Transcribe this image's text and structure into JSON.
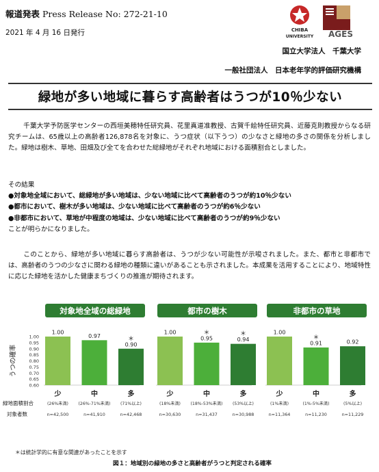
{
  "header": {
    "press_label": "報道発表",
    "press_release": "Press Release No: 272-21-10",
    "date": "2021 年 4 月 16 日発行",
    "org1": "国立大学法人　千葉大学",
    "org2": "一般社団法人　日本老年学的評価研究機構",
    "logo_chiba_text": "CHIBA UNIVERSITY",
    "logo_ages_text": "AGES"
  },
  "title": "緑地が多い地域に暮らす高齢者はうつが10％少ない",
  "para1": "千葉大学予防医学センターの西垣美穂特任研究員、花里真道准教授、古賀千絵特任研究員、近藤克則教授からなる研究チームは、65歳以上の高齢者126,878名を対象に、うつ症状（以下うつ）の少なさと緑地の多さの関係を分析しました。緑地は樹木、草地、田畑及び全てを合わせた総緑地がそれぞれ地域における面積割合としました。",
  "results": {
    "intro": "その結果",
    "bullets": [
      "●対象地全域において、総緑地が多い地域は、少ない地域に比べて高齢者のうつが約10％少ない",
      "●都市において、樹木が多い地域は、少ない地域に比べて高齢者のうつが約6％少ない",
      "●非都市において、草地が中程度の地域は、少ない地域に比べて高齢者のうつが約9％少ない"
    ],
    "outro": "ことが明らかになりました。"
  },
  "para3": "このことから、緑地が多い地域に暮らす高齢者は、うつが少ない可能性が示唆されました。また、都市と非都市では、高齢者のうつの少なさに関わる緑地の種類に違いがあることも示されました。本成果を活用することにより、地域特性に応じた緑地を活かした健康まちづくりの推進が期待されます。",
  "chart_data": {
    "type": "bar",
    "ylabel": "うつの確率",
    "ylim": [
      0.6,
      1.0
    ],
    "yticks": [
      "1.00",
      "0.95",
      "0.90",
      "0.85",
      "0.80",
      "0.75",
      "0.70",
      "0.65",
      "0.60"
    ],
    "row_label_area": "緑地面積割合",
    "row_label_n": "対象者数",
    "footnote": "＊は統計学的に有意な関連があったことを示す",
    "caption": "図１：地域別の緑地の多さと高齢者がうつと判定される確率",
    "colors": [
      "#8cc152",
      "#4caf3a",
      "#2e7d32"
    ],
    "header_bg": "#2e7d32",
    "panels": [
      {
        "title": "対象地全域の総緑地",
        "categories": [
          "少",
          "中",
          "多"
        ],
        "values": [
          1.0,
          0.97,
          0.9
        ],
        "value_labels": [
          "1.00",
          "0.97",
          "0.90"
        ],
        "significant": [
          false,
          false,
          true
        ],
        "ranges": [
          "(26%未満)",
          "(26%-71%未満)",
          "(71%以上)"
        ],
        "n": [
          "n=42,500",
          "n=41,910",
          "n=42,468"
        ]
      },
      {
        "title": "都市の樹木",
        "categories": [
          "少",
          "中",
          "多"
        ],
        "values": [
          1.0,
          0.95,
          0.94
        ],
        "value_labels": [
          "1.00",
          "0.95",
          "0.94"
        ],
        "significant": [
          false,
          true,
          true
        ],
        "ranges": [
          "(18%未満)",
          "(18%-53%未満)",
          "(53%以上)"
        ],
        "n": [
          "n=30,630",
          "n=31,437",
          "n=30,988"
        ]
      },
      {
        "title": "非都市の草地",
        "categories": [
          "少",
          "中",
          "多"
        ],
        "values": [
          1.0,
          0.91,
          0.92
        ],
        "value_labels": [
          "1.00",
          "0.91",
          "0.92"
        ],
        "significant": [
          false,
          true,
          false
        ],
        "ranges": [
          "(1%未満)",
          "(1%-5%未満)",
          "(5%以上)"
        ],
        "n": [
          "n=11,364",
          "n=11,230",
          "n=11,229"
        ]
      }
    ]
  }
}
